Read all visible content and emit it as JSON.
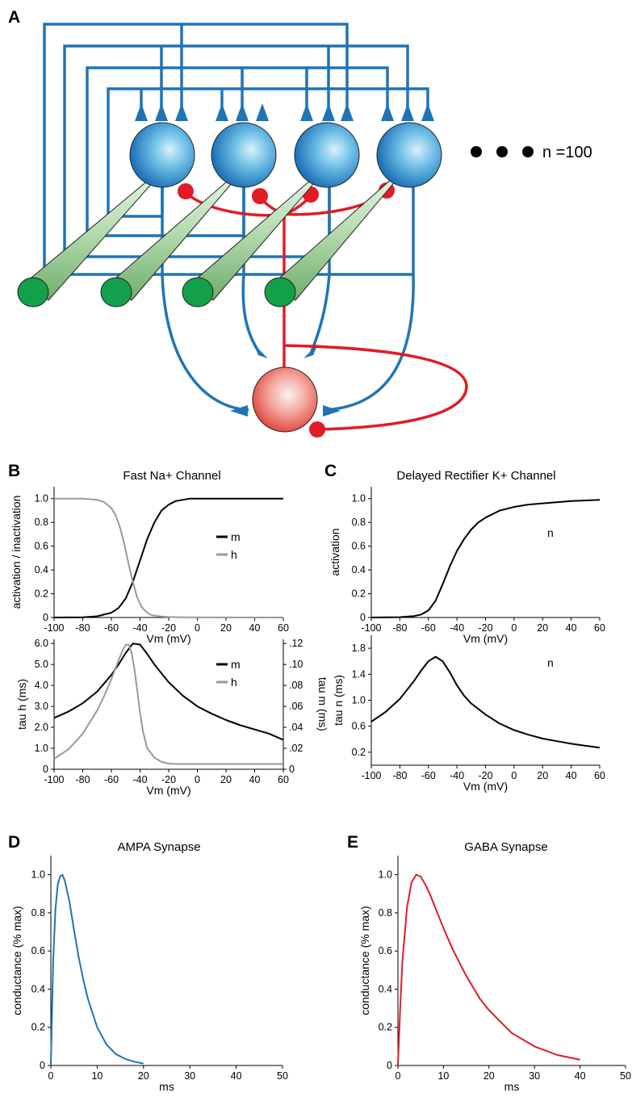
{
  "panels": {
    "A": {
      "letter": "A",
      "count_label": "n =100",
      "colors": {
        "excitatory": "#1f74b8",
        "inhibitory": "#e11c24",
        "input_fiber": "#2aa84a"
      }
    },
    "B_top": {
      "letter": "B",
      "title": "Fast Na+ Channel",
      "xlabel": "Vm (mV)",
      "ylabel": "activation / inactivation",
      "xticks": [
        "-100",
        "-80",
        "-60",
        "-40",
        "-20",
        "0",
        "20",
        "40",
        "60"
      ],
      "yticks": [
        "0",
        "0.2",
        "0.4",
        "0.6",
        "0.8",
        "1.0"
      ],
      "legend": [
        {
          "label": "m",
          "color": "#000000"
        },
        {
          "label": "h",
          "color": "#999999"
        }
      ]
    },
    "B_bottom": {
      "xlabel": "Vm (mV)",
      "ylabel_left": "tau h (ms)",
      "ylabel_right": "tau m (ms)",
      "xticks": [
        "-100",
        "-80",
        "-60",
        "-40",
        "-20",
        "0",
        "20",
        "40",
        "60"
      ],
      "yticks_left": [
        "0",
        "1.0",
        "2.0",
        "3.0",
        "4.0",
        "5.0",
        "6.0"
      ],
      "yticks_right": [
        "0",
        ".02",
        ".04",
        ".06",
        ".08",
        ".10",
        ".12"
      ],
      "legend": [
        {
          "label": "m",
          "color": "#000000"
        },
        {
          "label": "h",
          "color": "#999999"
        }
      ]
    },
    "C_top": {
      "letter": "C",
      "title": "Delayed Rectifier K+ Channel",
      "xlabel": "Vm (mV)",
      "ylabel": "activation",
      "curve_label": "n",
      "xticks": [
        "-100",
        "-80",
        "-60",
        "-40",
        "-20",
        "0",
        "20",
        "40",
        "60"
      ],
      "yticks": [
        "0",
        "0.2",
        "0.4",
        "0.6",
        "0.8",
        "1.0"
      ]
    },
    "C_bottom": {
      "xlabel": "Vm (mV)",
      "ylabel": "tau n (ms)",
      "curve_label": "n",
      "xticks": [
        "-100",
        "-80",
        "-60",
        "-40",
        "-20",
        "0",
        "20",
        "40",
        "60"
      ],
      "yticks": [
        "0.2",
        "0.6",
        "1.0",
        "1.4",
        "1.8"
      ]
    },
    "D": {
      "letter": "D",
      "title": "AMPA Synapse",
      "xlabel": "ms",
      "ylabel": "conductance (% max)",
      "xticks": [
        "0",
        "10",
        "20",
        "30",
        "40",
        "50"
      ],
      "yticks": [
        "0",
        "0.2",
        "0.4",
        "0.6",
        "0.8",
        "1.0"
      ],
      "color": "#1f74b8"
    },
    "E": {
      "letter": "E",
      "title": "GABA Synapse",
      "xlabel": "ms",
      "ylabel": "conductance (% max)",
      "xticks": [
        "0",
        "10",
        "20",
        "30",
        "40",
        "50"
      ],
      "yticks": [
        "0",
        "0.2",
        "0.4",
        "0.6",
        "0.8",
        "1.0"
      ],
      "color": "#e11c24"
    }
  },
  "chart_data": [
    {
      "type": "line",
      "title": "Fast Na+ Channel",
      "xlabel": "Vm (mV)",
      "ylabel": "activation / inactivation",
      "xlim": [
        -100,
        60
      ],
      "ylim": [
        0,
        1.1
      ],
      "series": [
        {
          "name": "m",
          "color": "#000000",
          "x": [
            -100,
            -80,
            -70,
            -60,
            -55,
            -50,
            -45,
            -40,
            -35,
            -30,
            -25,
            -20,
            -15,
            -10,
            -5,
            0,
            10,
            20,
            40,
            60
          ],
          "y": [
            0,
            0.002,
            0.01,
            0.04,
            0.08,
            0.16,
            0.3,
            0.48,
            0.66,
            0.8,
            0.9,
            0.95,
            0.98,
            0.99,
            1.0,
            1.0,
            1.0,
            1.0,
            1.0,
            1.0
          ]
        },
        {
          "name": "h",
          "color": "#999999",
          "x": [
            -100,
            -80,
            -70,
            -65,
            -60,
            -57,
            -54,
            -51,
            -48,
            -45,
            -42,
            -39,
            -36,
            -33,
            -30,
            -25,
            -20,
            -10,
            0,
            60
          ],
          "y": [
            1.0,
            1.0,
            0.99,
            0.97,
            0.92,
            0.86,
            0.76,
            0.62,
            0.45,
            0.3,
            0.17,
            0.09,
            0.05,
            0.025,
            0.015,
            0.008,
            0.004,
            0.002,
            0.001,
            0
          ]
        }
      ]
    },
    {
      "type": "line",
      "xlabel": "Vm (mV)",
      "ylabel": "tau h (ms)",
      "y2label": "tau m (ms)",
      "xlim": [
        -100,
        60
      ],
      "ylim": [
        0,
        6.2
      ],
      "y2lim": [
        0,
        0.124
      ],
      "series": [
        {
          "name": "m",
          "axis": "right",
          "color": "#000000",
          "x": [
            -100,
            -90,
            -80,
            -70,
            -60,
            -55,
            -50,
            -45,
            -40,
            -35,
            -30,
            -20,
            -10,
            0,
            10,
            20,
            30,
            40,
            50,
            60
          ],
          "y": [
            0.049,
            0.055,
            0.063,
            0.074,
            0.09,
            0.1,
            0.111,
            0.12,
            0.119,
            0.11,
            0.1,
            0.083,
            0.07,
            0.06,
            0.053,
            0.047,
            0.042,
            0.038,
            0.034,
            0.028
          ]
        },
        {
          "name": "h",
          "axis": "left",
          "color": "#999999",
          "x": [
            -100,
            -90,
            -80,
            -70,
            -65,
            -60,
            -55,
            -52,
            -50,
            -48,
            -46,
            -44,
            -42,
            -40,
            -38,
            -35,
            -30,
            -25,
            -20,
            -15,
            -10,
            0,
            60
          ],
          "y": [
            0.5,
            0.95,
            1.7,
            2.8,
            3.5,
            4.3,
            5.2,
            5.7,
            5.93,
            5.95,
            5.6,
            4.8,
            3.8,
            2.7,
            1.8,
            1.0,
            0.55,
            0.35,
            0.27,
            0.25,
            0.25,
            0.25,
            0.25
          ]
        }
      ]
    },
    {
      "type": "line",
      "title": "Delayed Rectifier K+ Channel",
      "xlabel": "Vm (mV)",
      "ylabel": "activation",
      "xlim": [
        -100,
        60
      ],
      "ylim": [
        0,
        1.1
      ],
      "series": [
        {
          "name": "n",
          "color": "#000000",
          "x": [
            -100,
            -80,
            -70,
            -65,
            -60,
            -55,
            -50,
            -45,
            -40,
            -35,
            -30,
            -25,
            -20,
            -15,
            -10,
            0,
            10,
            20,
            40,
            60
          ],
          "y": [
            0,
            0.003,
            0.012,
            0.025,
            0.06,
            0.14,
            0.28,
            0.43,
            0.56,
            0.66,
            0.74,
            0.8,
            0.84,
            0.87,
            0.9,
            0.93,
            0.95,
            0.96,
            0.98,
            0.99
          ]
        }
      ]
    },
    {
      "type": "line",
      "xlabel": "Vm (mV)",
      "ylabel": "tau n (ms)",
      "xlim": [
        -100,
        60
      ],
      "ylim": [
        0,
        2.0
      ],
      "series": [
        {
          "name": "n",
          "color": "#000000",
          "x": [
            -100,
            -90,
            -80,
            -70,
            -65,
            -60,
            -55,
            -50,
            -45,
            -40,
            -35,
            -30,
            -20,
            -10,
            0,
            10,
            20,
            30,
            40,
            50,
            60
          ],
          "y": [
            0.67,
            0.82,
            1.02,
            1.3,
            1.46,
            1.6,
            1.67,
            1.6,
            1.43,
            1.23,
            1.07,
            0.95,
            0.78,
            0.64,
            0.54,
            0.47,
            0.41,
            0.37,
            0.33,
            0.3,
            0.27
          ]
        }
      ]
    },
    {
      "type": "line",
      "title": "AMPA Synapse",
      "xlabel": "ms",
      "ylabel": "conductance (% max)",
      "xlim": [
        0,
        50
      ],
      "ylim": [
        0,
        1.1
      ],
      "series": [
        {
          "name": "AMPA",
          "color": "#1f74b8",
          "x": [
            0,
            0.5,
            1,
            1.5,
            2,
            2.5,
            3,
            4,
            5,
            6,
            7,
            8,
            10,
            12,
            14,
            16,
            18,
            20
          ],
          "y": [
            0,
            0.55,
            0.82,
            0.95,
            0.99,
            1.0,
            0.97,
            0.86,
            0.71,
            0.57,
            0.45,
            0.35,
            0.2,
            0.11,
            0.06,
            0.035,
            0.02,
            0.01
          ]
        }
      ]
    },
    {
      "type": "line",
      "title": "GABA Synapse",
      "xlabel": "ms",
      "ylabel": "conductance (% max)",
      "xlim": [
        0,
        50
      ],
      "ylim": [
        0,
        1.1
      ],
      "series": [
        {
          "name": "GABA",
          "color": "#e11c24",
          "x": [
            0,
            0.5,
            1,
            2,
            3,
            4,
            5,
            6,
            7,
            8,
            10,
            12,
            15,
            18,
            20,
            25,
            30,
            35,
            40
          ],
          "y": [
            0,
            0.3,
            0.55,
            0.83,
            0.96,
            1.0,
            0.99,
            0.95,
            0.9,
            0.84,
            0.72,
            0.61,
            0.47,
            0.35,
            0.29,
            0.17,
            0.1,
            0.055,
            0.03
          ]
        }
      ]
    }
  ]
}
